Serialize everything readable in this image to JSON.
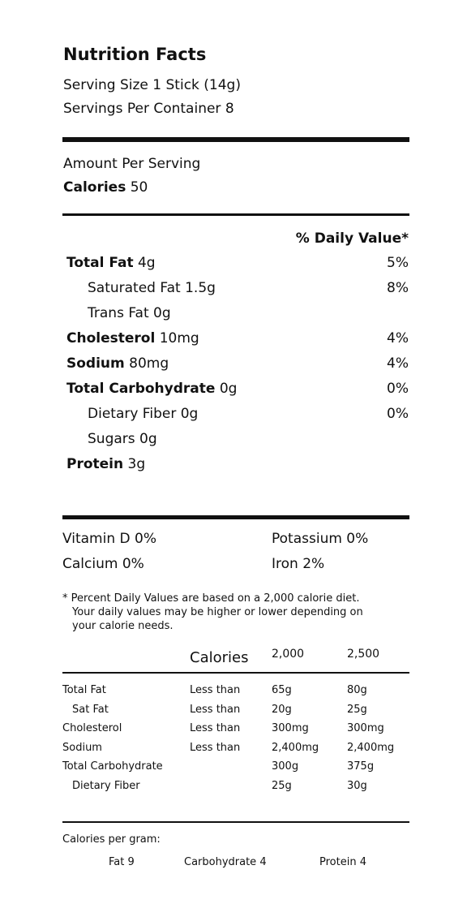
{
  "header": {
    "title": "Nutrition Facts",
    "serving_size": "Serving Size 1 Stick (14g)",
    "servings_per_container": "Servings Per Container 8"
  },
  "amount_per_serving": "Amount Per Serving",
  "calories": {
    "label": "Calories",
    "value": "50"
  },
  "daily_value_header": "% Daily Value*",
  "nutrients": [
    {
      "name": "Total Fat",
      "amount": "4g",
      "dv": "5%"
    },
    {
      "name": "Saturated Fat",
      "amount": "1.5g",
      "dv": "8%"
    },
    {
      "name": "Trans Fat",
      "amount": "0g"
    },
    {
      "name": "Cholesterol",
      "amount": "10mg",
      "dv": "4%"
    },
    {
      "name": "Sodium",
      "amount": "80mg",
      "dv": "4%"
    },
    {
      "name": "Total Carbohydrate",
      "amount": "0g",
      "dv": "0%"
    },
    {
      "name": "Dietary Fiber",
      "amount": "0g",
      "dv": "0%"
    },
    {
      "name": "Sugars",
      "amount": "0g"
    },
    {
      "name": "Protein",
      "amount": "3g"
    }
  ],
  "vitamins": [
    "Vitamin D 0%",
    "Potassium 0%",
    "Calcium 0%",
    "Iron 2%"
  ],
  "footnote": [
    "* Percent Daily Values are based on a 2,000 calorie diet.",
    "Your daily values may be higher or lower depending on",
    "your calorie needs."
  ],
  "reference_table": {
    "header": [
      "Calories",
      "2,000",
      "2,500"
    ],
    "rows": [
      [
        "Total Fat",
        "Less than",
        "65g",
        "80g"
      ],
      [
        "Sat Fat",
        "Less than",
        "20g",
        "25g"
      ],
      [
        "Cholesterol",
        "Less than",
        "300mg",
        "300mg"
      ],
      [
        "Sodium",
        "Less than",
        "2,400mg",
        "2,400mg"
      ],
      [
        "Total Carbohydrate",
        "",
        "300g",
        "375g"
      ],
      [
        "Dietary Fiber",
        "",
        "25g",
        "30g"
      ]
    ]
  },
  "calories_per_gram": {
    "label": "Calories per gram:",
    "items": [
      "Fat 9",
      "Carbohydrate 4",
      "Protein 4"
    ]
  }
}
